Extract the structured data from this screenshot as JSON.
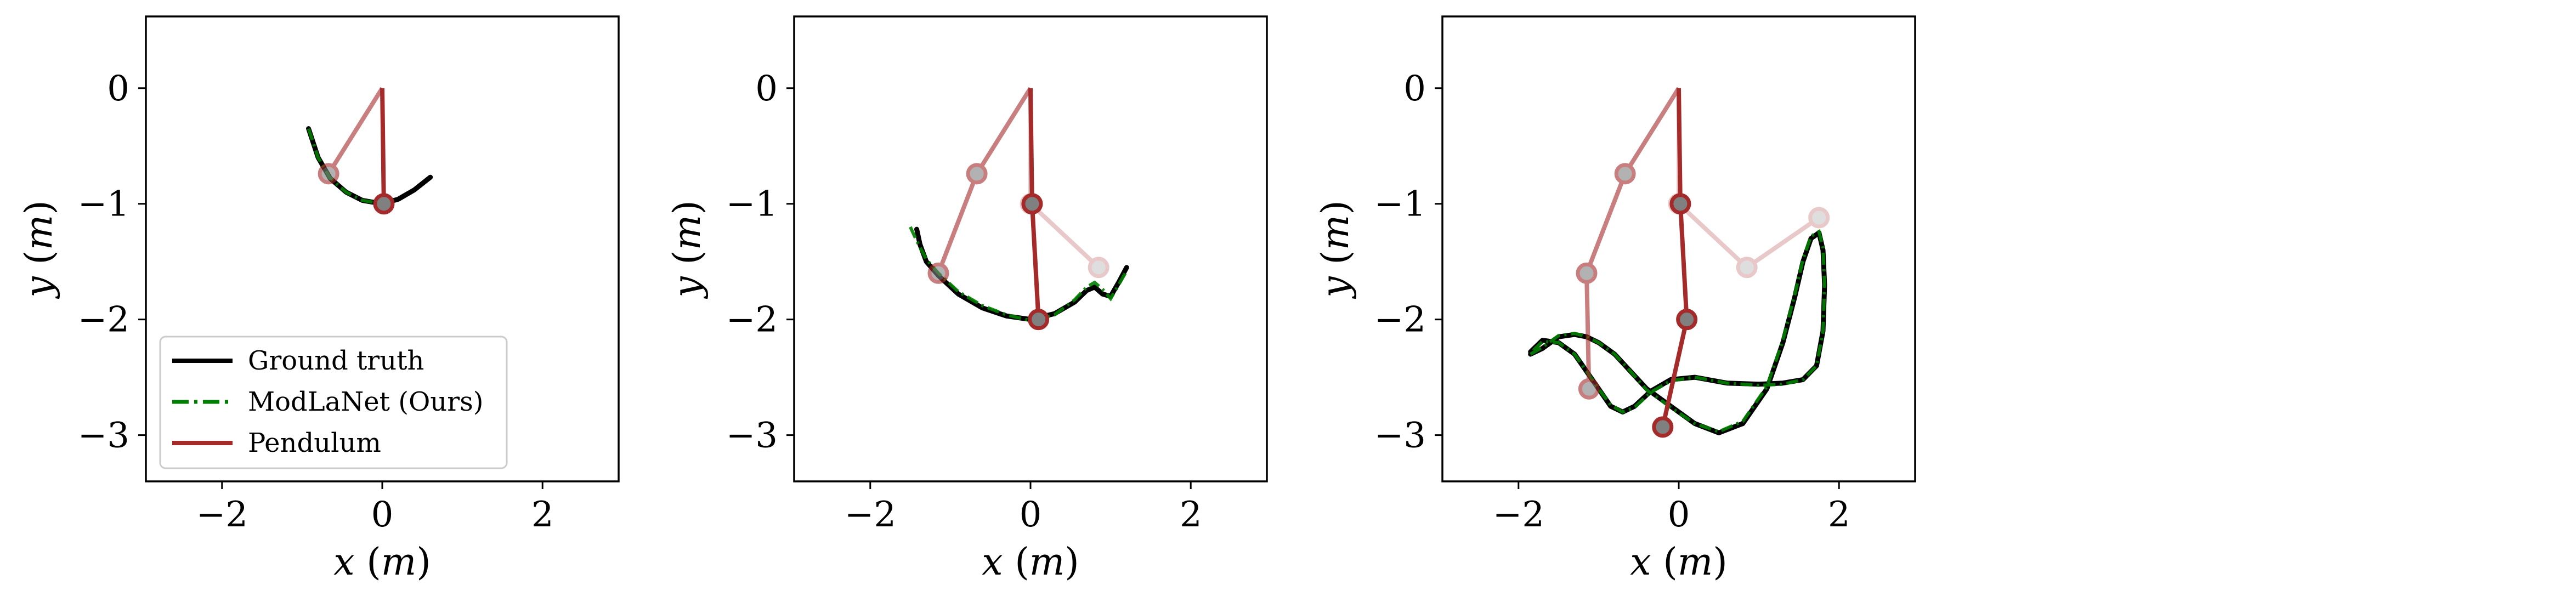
{
  "figure": {
    "legend": {
      "placement": "lower-left",
      "entries": [
        {
          "label": "Ground truth",
          "color": "#000000",
          "style": "solid"
        },
        {
          "label": "ModLaNet (Ours)",
          "color": "#008000",
          "style": "dashdot"
        },
        {
          "label": "Pendulum",
          "color": "#a52a2a",
          "style": "solid"
        }
      ]
    },
    "colors": {
      "ground_truth": "#000000",
      "prediction": "#008000",
      "pendulum": "#a52a2a",
      "bob_fill": "#808080"
    }
  },
  "chart_data": [
    {
      "type": "line",
      "xlabel": "x (m)",
      "ylabel": "y (m)",
      "xlim": [
        -2.95,
        2.95
      ],
      "ylim": [
        -3.4,
        0.62
      ],
      "xticks": [
        -2,
        0,
        2
      ],
      "yticks": [
        0,
        -1,
        -2,
        -3
      ],
      "grid": false,
      "has_legend": true,
      "pendulums": [
        {
          "alpha": 0.6,
          "points": [
            [
              0,
              0
            ],
            [
              -0.67,
              -0.74
            ]
          ]
        },
        {
          "alpha": 1.0,
          "points": [
            [
              0,
              0
            ],
            [
              0.02,
              -1.0
            ]
          ]
        }
      ],
      "series": [
        {
          "name": "Ground truth",
          "x": [
            -0.92,
            -0.8,
            -0.65,
            -0.45,
            -0.25,
            0.0,
            0.2,
            0.4,
            0.6
          ],
          "y": [
            -0.35,
            -0.6,
            -0.78,
            -0.9,
            -0.97,
            -1.0,
            -0.96,
            -0.88,
            -0.77
          ]
        },
        {
          "name": "ModLaNet (Ours)",
          "x": [
            -0.92,
            -0.8,
            -0.65,
            -0.45,
            -0.25,
            0.0,
            0.15
          ],
          "y": [
            -0.35,
            -0.6,
            -0.78,
            -0.9,
            -0.97,
            -1.0,
            -0.98
          ]
        }
      ]
    },
    {
      "type": "line",
      "xlabel": "x (m)",
      "ylabel": "y (m)",
      "xlim": [
        -2.95,
        2.95
      ],
      "ylim": [
        -3.4,
        0.62
      ],
      "xticks": [
        -2,
        0,
        2
      ],
      "yticks": [
        0,
        -1,
        -2,
        -3
      ],
      "grid": false,
      "has_legend": false,
      "pendulums": [
        {
          "alpha": 0.25,
          "points": [
            [
              0,
              0
            ],
            [
              0.0,
              -1.0
            ],
            [
              0.85,
              -1.55
            ]
          ]
        },
        {
          "alpha": 0.6,
          "points": [
            [
              0,
              0
            ],
            [
              -0.67,
              -0.74
            ],
            [
              -1.15,
              -1.6
            ]
          ]
        },
        {
          "alpha": 1.0,
          "points": [
            [
              0,
              0
            ],
            [
              0.02,
              -1.0
            ],
            [
              0.1,
              -2.0
            ]
          ]
        }
      ],
      "series": [
        {
          "name": "Ground truth",
          "x": [
            -1.42,
            -1.38,
            -1.3,
            -1.15,
            -0.9,
            -0.6,
            -0.3,
            0.0,
            0.3,
            0.55,
            0.7,
            0.8,
            0.9,
            1.0,
            1.1,
            1.2
          ],
          "y": [
            -1.22,
            -1.35,
            -1.5,
            -1.62,
            -1.78,
            -1.9,
            -1.97,
            -2.0,
            -1.95,
            -1.85,
            -1.75,
            -1.72,
            -1.78,
            -1.8,
            -1.68,
            -1.55
          ]
        },
        {
          "name": "ModLaNet (Ours)",
          "x": [
            -1.5,
            -1.42,
            -1.3,
            -1.15,
            -0.9,
            -0.6,
            -0.3,
            0.0,
            0.3,
            0.55,
            0.7,
            0.8,
            0.9,
            1.0,
            1.1,
            1.2
          ],
          "y": [
            -1.2,
            -1.32,
            -1.48,
            -1.6,
            -1.76,
            -1.88,
            -1.96,
            -2.01,
            -1.96,
            -1.83,
            -1.72,
            -1.68,
            -1.74,
            -1.82,
            -1.7,
            -1.58
          ]
        }
      ]
    },
    {
      "type": "line",
      "xlabel": "x (m)",
      "ylabel": "y (m)",
      "xlim": [
        -2.95,
        2.95
      ],
      "ylim": [
        -3.4,
        0.62
      ],
      "xticks": [
        -2,
        0,
        2
      ],
      "yticks": [
        0,
        -1,
        -2,
        -3
      ],
      "grid": false,
      "has_legend": false,
      "pendulums": [
        {
          "alpha": 0.25,
          "points": [
            [
              0,
              0
            ],
            [
              0.0,
              -1.0
            ],
            [
              0.85,
              -1.55
            ],
            [
              1.75,
              -1.12
            ]
          ]
        },
        {
          "alpha": 0.6,
          "points": [
            [
              0,
              0
            ],
            [
              -0.67,
              -0.74
            ],
            [
              -1.15,
              -1.6
            ],
            [
              -1.12,
              -2.6
            ]
          ]
        },
        {
          "alpha": 1.0,
          "points": [
            [
              0,
              0
            ],
            [
              0.02,
              -1.0
            ],
            [
              0.1,
              -2.0
            ],
            [
              -0.2,
              -2.93
            ]
          ]
        }
      ],
      "series": [
        {
          "name": "Ground truth",
          "x": [
            -1.85,
            -1.7,
            -1.5,
            -1.3,
            -1.15,
            -1.0,
            -0.8,
            -0.6,
            -0.4,
            -0.1,
            0.2,
            0.5,
            0.8,
            1.1,
            1.3,
            1.45,
            1.55,
            1.65,
            1.75,
            1.8,
            1.82,
            1.8,
            1.72,
            1.55,
            1.3,
            1.0,
            0.6,
            0.2,
            -0.1,
            -0.35,
            -0.55,
            -0.7,
            -0.85,
            -1.0,
            -1.15,
            -1.3,
            -1.5,
            -1.7,
            -1.85
          ],
          "y": [
            -2.3,
            -2.25,
            -2.15,
            -2.13,
            -2.15,
            -2.2,
            -2.3,
            -2.45,
            -2.6,
            -2.75,
            -2.9,
            -2.98,
            -2.9,
            -2.6,
            -2.2,
            -1.8,
            -1.5,
            -1.3,
            -1.25,
            -1.4,
            -1.7,
            -2.1,
            -2.4,
            -2.52,
            -2.55,
            -2.56,
            -2.55,
            -2.5,
            -2.52,
            -2.62,
            -2.75,
            -2.8,
            -2.75,
            -2.6,
            -2.45,
            -2.3,
            -2.2,
            -2.18,
            -2.28
          ]
        },
        {
          "name": "ModLaNet (Ours)",
          "x": [
            -1.85,
            -1.7,
            -1.5,
            -1.3,
            -1.15,
            -1.0,
            -0.8,
            -0.6,
            -0.4,
            -0.1,
            0.2,
            0.5,
            0.8,
            1.1,
            1.3,
            1.45,
            1.55,
            1.65,
            1.75,
            1.8,
            1.82,
            1.8,
            1.72,
            1.55,
            1.3,
            1.0,
            0.6,
            0.2,
            -0.1,
            -0.35,
            -0.55,
            -0.7,
            -0.85,
            -1.0,
            -1.15,
            -1.3,
            -1.5,
            -1.7,
            -1.85
          ],
          "y": [
            -2.3,
            -2.24,
            -2.14,
            -2.12,
            -2.15,
            -2.2,
            -2.3,
            -2.45,
            -2.61,
            -2.76,
            -2.9,
            -2.97,
            -2.88,
            -2.58,
            -2.18,
            -1.78,
            -1.48,
            -1.28,
            -1.24,
            -1.38,
            -1.7,
            -2.1,
            -2.4,
            -2.52,
            -2.56,
            -2.57,
            -2.55,
            -2.5,
            -2.53,
            -2.63,
            -2.76,
            -2.8,
            -2.74,
            -2.6,
            -2.45,
            -2.3,
            -2.2,
            -2.19,
            -2.29
          ]
        }
      ]
    }
  ]
}
